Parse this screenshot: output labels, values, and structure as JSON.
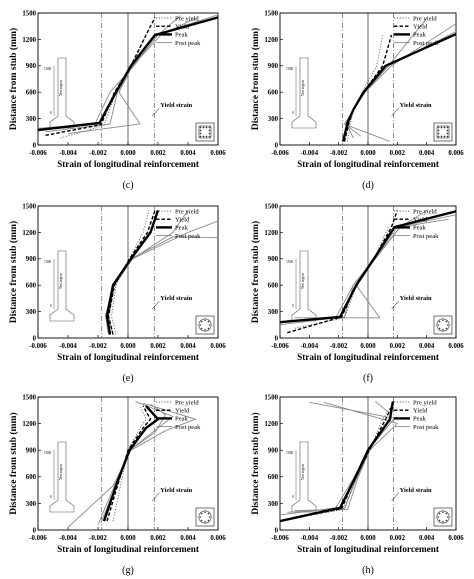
{
  "chart_data": [
    {
      "panel_label": "(c)",
      "type": "line",
      "xlabel": "Strain of longitudinal reinforcement",
      "ylabel": "Distance from stub (mm)",
      "xlim": [
        -0.006,
        0.006
      ],
      "ylim": [
        0,
        1500
      ],
      "xticks": [
        "-0.006",
        "-0.004",
        "-0.002",
        "0.000",
        "0.002",
        "0.004",
        "0.006"
      ],
      "yticks": [
        "0",
        "300",
        "600",
        "900",
        "1200",
        "1500"
      ],
      "yield_strain": 0.00175,
      "yield_label": "Yield strain",
      "inset_label": "Test region",
      "inset_dim": "1500",
      "inset_zero": "0",
      "section": "square",
      "legend": {
        "entries": [
          {
            "name": "Pre yield",
            "style": "dotted"
          },
          {
            "name": "Yield",
            "style": "dashed"
          },
          {
            "name": "Peak",
            "style": "solid-thick"
          },
          {
            "name": "Post peak",
            "style": "solid-gray"
          }
        ]
      },
      "series": [
        {
          "name": "Pre yield",
          "style": "dotted",
          "x": [
            -0.0045,
            -0.0016,
            -0.0008,
            0.0003,
            0.0012
          ],
          "y": [
            80,
            220,
            600,
            900,
            1250
          ]
        },
        {
          "name": "Yield",
          "style": "dashed",
          "x": [
            -0.0055,
            -0.0018,
            -0.0009,
            0.0002,
            0.0012,
            0.0018
          ],
          "y": [
            110,
            230,
            600,
            900,
            1250,
            1450
          ]
        },
        {
          "name": "Peak",
          "style": "solid-thick",
          "x": [
            -0.006,
            -0.0019,
            -0.0008,
            0.0002,
            0.0018,
            0.006
          ],
          "y": [
            170,
            250,
            600,
            900,
            1250,
            1450
          ]
        },
        {
          "name": "Post peak",
          "style": "solid-gray",
          "x": [
            -0.006,
            -0.0022,
            -0.0012,
            0.0004,
            0.002,
            0.006
          ],
          "y": [
            190,
            240,
            600,
            900,
            1260,
            1480
          ]
        },
        {
          "name": "Post peak",
          "style": "solid-gray",
          "x": [
            -0.0055,
            -0.0012,
            -0.0007,
            0.0003,
            0.002,
            0.0035
          ],
          "y": [
            150,
            240,
            600,
            900,
            1250,
            1470
          ]
        },
        {
          "name": "Post peak",
          "style": "solid-gray",
          "x": [
            -0.004,
            0.0008,
            -0.0006,
            0.0003,
            0.0022,
            0.0045
          ],
          "y": [
            130,
            240,
            600,
            900,
            1250,
            1440
          ]
        }
      ]
    },
    {
      "panel_label": "(d)",
      "type": "line",
      "xlabel": "Strain of longitudinal reinforcement",
      "ylabel": "Distance from stub (mm)",
      "xlim": [
        -0.006,
        0.006
      ],
      "ylim": [
        0,
        1500
      ],
      "xticks": [
        "-0.006",
        "-0.004",
        "-0.002",
        "0.000",
        "0.002",
        "0.004",
        "0.006"
      ],
      "yticks": [
        "0",
        "300",
        "600",
        "900",
        "1200",
        "1500"
      ],
      "yield_strain": 0.00175,
      "yield_label": "Yield strain",
      "inset_label": "Test region",
      "inset_dim": "1500",
      "inset_zero": "0",
      "section": "square",
      "legend": {
        "entries": [
          {
            "name": "Pre yield",
            "style": "dotted"
          },
          {
            "name": "Yield",
            "style": "dashed"
          },
          {
            "name": "Peak",
            "style": "solid-thick"
          },
          {
            "name": "Post peak",
            "style": "solid-gray"
          }
        ]
      },
      "series": [
        {
          "name": "Pre yield",
          "style": "dotted",
          "x": [
            -0.0014,
            -0.0012,
            -0.001,
            -0.0004,
            0.0006,
            0.001
          ],
          "y": [
            40,
            250,
            400,
            600,
            900,
            1250
          ]
        },
        {
          "name": "Yield",
          "style": "dashed",
          "x": [
            -0.0016,
            -0.0013,
            -0.001,
            -0.0003,
            0.001,
            0.0016
          ],
          "y": [
            40,
            250,
            400,
            600,
            900,
            1250
          ]
        },
        {
          "name": "Peak",
          "style": "solid-thick",
          "x": [
            -0.0017,
            -0.0014,
            -0.001,
            -0.0003,
            0.0012,
            0.006
          ],
          "y": [
            40,
            250,
            400,
            600,
            900,
            1260
          ]
        },
        {
          "name": "Post peak",
          "style": "solid-gray",
          "x": [
            -0.001,
            -0.0015,
            -0.001,
            -0.0003,
            0.0014,
            0.006
          ],
          "y": [
            80,
            250,
            400,
            600,
            900,
            1290
          ]
        },
        {
          "name": "Post peak",
          "style": "solid-gray",
          "x": [
            -0.0005,
            -0.0016,
            -0.001,
            -0.0002,
            0.0014,
            0.004
          ],
          "y": [
            100,
            240,
            400,
            600,
            900,
            1440
          ]
        },
        {
          "name": "Post peak",
          "style": "solid-gray",
          "x": [
            0.0015,
            -0.0015,
            -0.001,
            -0.0002,
            0.0016,
            0.006
          ],
          "y": [
            40,
            230,
            400,
            600,
            900,
            1380
          ]
        }
      ]
    },
    {
      "panel_label": "(e)",
      "type": "line",
      "xlabel": "Strain of longitudinal reinforcement",
      "ylabel": "Distance from stub (mm)",
      "xlim": [
        -0.006,
        0.006
      ],
      "ylim": [
        0,
        1500
      ],
      "xticks": [
        "-0.006",
        "-0.004",
        "-0.002",
        "0.000",
        "0.002",
        "0.004",
        "0.006"
      ],
      "yticks": [
        "0",
        "300",
        "600",
        "900",
        "1200",
        "1500"
      ],
      "yield_strain": 0.00175,
      "yield_label": "Yield strain",
      "inset_label": "Test region",
      "inset_dim": "1500",
      "inset_zero": "0",
      "section": "circle",
      "legend": {
        "entries": [
          {
            "name": "Pre yield",
            "style": "dotted"
          },
          {
            "name": "Yield",
            "style": "dashed"
          },
          {
            "name": "Peak",
            "style": "solid-thick"
          },
          {
            "name": "Post peak",
            "style": "solid-gray"
          }
        ]
      },
      "series": [
        {
          "name": "Pre yield",
          "style": "dotted",
          "x": [
            -0.0008,
            -0.0011,
            -0.0008,
            0.0001,
            0.001,
            0.0014
          ],
          "y": [
            40,
            250,
            600,
            900,
            1200,
            1450
          ]
        },
        {
          "name": "Yield",
          "style": "dashed",
          "x": [
            -0.001,
            -0.0013,
            -0.0009,
            0.0001,
            0.0013,
            0.0018
          ],
          "y": [
            40,
            250,
            600,
            900,
            1200,
            1450
          ]
        },
        {
          "name": "Peak",
          "style": "solid-thick",
          "x": [
            -0.0012,
            -0.0014,
            -0.001,
            0.0002,
            0.0015,
            0.002
          ],
          "y": [
            40,
            250,
            600,
            900,
            1200,
            1450
          ]
        },
        {
          "name": "Post peak",
          "style": "solid-gray",
          "x": [
            -0.0013,
            -0.0015,
            -0.001,
            0.0003,
            0.003,
            0.004
          ],
          "y": [
            40,
            250,
            600,
            900,
            1200,
            1450
          ]
        },
        {
          "name": "Post peak",
          "style": "solid-gray",
          "x": [
            -0.001,
            -0.0013,
            -0.0009,
            0.0003,
            0.004,
            0.006
          ],
          "y": [
            40,
            250,
            600,
            900,
            1200,
            1330
          ]
        },
        {
          "name": "Post peak",
          "style": "solid-gray",
          "x": [
            -0.0012,
            -0.0015,
            -0.001,
            0.0002,
            0.003,
            0.006
          ],
          "y": [
            40,
            250,
            600,
            900,
            1150,
            1140
          ]
        }
      ]
    },
    {
      "panel_label": "(f)",
      "type": "line",
      "xlabel": "Strain of longitudinal reinforcement",
      "ylabel": "Distance from stub (mm)",
      "xlim": [
        -0.006,
        0.006
      ],
      "ylim": [
        0,
        1500
      ],
      "xticks": [
        "-0.006",
        "-0.004",
        "-0.002",
        "0.000",
        "0.002",
        "0.004",
        "0.006"
      ],
      "yticks": [
        "0",
        "300",
        "600",
        "900",
        "1200",
        "1500"
      ],
      "yield_strain": 0.00175,
      "yield_label": "Yield strain",
      "inset_label": "Test region",
      "inset_dim": "1500",
      "inset_zero": "0",
      "section": "circle",
      "legend": {
        "entries": [
          {
            "name": "Pre yield",
            "style": "dotted"
          },
          {
            "name": "Yield",
            "style": "dashed"
          },
          {
            "name": "Peak",
            "style": "solid-thick"
          },
          {
            "name": "Post peak",
            "style": "solid-gray"
          }
        ]
      },
      "series": [
        {
          "name": "Pre yield",
          "style": "dotted",
          "x": [
            -0.005,
            -0.0016,
            -0.0008,
            0.0004,
            0.0014
          ],
          "y": [
            110,
            230,
            600,
            900,
            1260
          ]
        },
        {
          "name": "Yield",
          "style": "dashed",
          "x": [
            -0.0055,
            -0.0018,
            -0.0008,
            0.0004,
            0.0016,
            0.002
          ],
          "y": [
            60,
            240,
            600,
            900,
            1260,
            1450
          ]
        },
        {
          "name": "Peak",
          "style": "solid-thick",
          "x": [
            -0.006,
            -0.0019,
            -0.0008,
            0.0004,
            0.0018,
            0.006
          ],
          "y": [
            180,
            240,
            600,
            900,
            1260,
            1440
          ]
        },
        {
          "name": "Post peak",
          "style": "solid-gray",
          "x": [
            -0.006,
            -0.0022,
            -0.001,
            0.0004,
            0.002,
            0.006
          ],
          "y": [
            150,
            230,
            600,
            900,
            1260,
            1400
          ]
        },
        {
          "name": "Post peak",
          "style": "solid-gray",
          "x": [
            -0.0055,
            -0.0016,
            -0.001,
            0.0005,
            0.0022,
            0.004
          ],
          "y": [
            200,
            240,
            600,
            900,
            1260,
            1450
          ]
        },
        {
          "name": "Post peak",
          "style": "solid-gray",
          "x": [
            -0.005,
            0.0008,
            -0.0008,
            0.0004,
            0.0022,
            0.0055
          ],
          "y": [
            230,
            230,
            600,
            900,
            1260,
            1350
          ]
        }
      ]
    },
    {
      "panel_label": "(g)",
      "type": "line",
      "xlabel": "Strain of longitudinal reinforcement",
      "ylabel": "Distance from stub (mm)",
      "xlim": [
        -0.006,
        0.006
      ],
      "ylim": [
        0,
        1500
      ],
      "xticks": [
        "-0.006",
        "-0.004",
        "-0.002",
        "0.000",
        "0.002",
        "0.004",
        "0.006"
      ],
      "yticks": [
        "0",
        "300",
        "600",
        "900",
        "1200",
        "1500"
      ],
      "yield_strain": 0.00175,
      "yield_label": "Yield strain",
      "inset_label": "Test region",
      "inset_dim": "1500",
      "inset_zero": "0",
      "section": "circle",
      "legend": {
        "entries": [
          {
            "name": "Pre yield",
            "style": "dotted"
          },
          {
            "name": "Yield",
            "style": "dashed"
          },
          {
            "name": "Peak",
            "style": "solid-thick"
          },
          {
            "name": "Post peak",
            "style": "solid-gray"
          }
        ]
      },
      "series": [
        {
          "name": "Pre yield",
          "style": "dotted",
          "x": [
            -0.001,
            -0.0005,
            0.0,
            0.0008,
            0.0012,
            0.0008
          ],
          "y": [
            100,
            500,
            900,
            1150,
            1250,
            1400
          ]
        },
        {
          "name": "Yield",
          "style": "dashed",
          "x": [
            -0.0014,
            -0.0007,
            0.0,
            0.001,
            0.0015,
            0.001
          ],
          "y": [
            100,
            500,
            900,
            1150,
            1250,
            1400
          ]
        },
        {
          "name": "Peak",
          "style": "solid-thick",
          "x": [
            -0.0016,
            -0.0008,
            0.0001,
            0.0012,
            0.002,
            0.0012
          ],
          "y": [
            100,
            500,
            900,
            1150,
            1250,
            1400
          ]
        },
        {
          "name": "Post peak",
          "style": "solid-gray",
          "x": [
            -0.004,
            -0.001,
            0.0002,
            0.0025,
            0.0045,
            0.001
          ],
          "y": [
            30,
            500,
            900,
            1120,
            1250,
            1430
          ]
        },
        {
          "name": "Post peak",
          "style": "solid-gray",
          "x": [
            -0.002,
            -0.0009,
            0.0001,
            0.002,
            0.003,
            0.0005
          ],
          "y": [
            60,
            500,
            900,
            1150,
            1280,
            1450
          ]
        },
        {
          "name": "Post peak",
          "style": "solid-gray",
          "x": [
            -0.0018,
            -0.0008,
            0.0001,
            0.0018,
            0.0025,
            0.0015
          ],
          "y": [
            80,
            500,
            900,
            1100,
            1300,
            1420
          ]
        }
      ]
    },
    {
      "panel_label": "(h)",
      "type": "line",
      "xlabel": "Strain of longitudinal reinforcement",
      "ylabel": "Distance from stub (mm)",
      "xlim": [
        -0.006,
        0.006
      ],
      "ylim": [
        0,
        1500
      ],
      "xticks": [
        "-0.006",
        "-0.004",
        "-0.002",
        "0.000",
        "0.002",
        "0.004",
        "0.006"
      ],
      "yticks": [
        "0",
        "300",
        "600",
        "900",
        "1200",
        "1500"
      ],
      "yield_strain": 0.00175,
      "yield_label": "Yield strain",
      "inset_label": "Test region",
      "inset_dim": "1500",
      "inset_zero": "0",
      "section": "circle",
      "legend": {
        "entries": [
          {
            "name": "Pre yield",
            "style": "dotted"
          },
          {
            "name": "Yield",
            "style": "dashed"
          },
          {
            "name": "Peak",
            "style": "solid-thick"
          },
          {
            "name": "Post peak",
            "style": "solid-gray"
          }
        ]
      },
      "series": [
        {
          "name": "Pre yield",
          "style": "dotted",
          "x": [
            -0.005,
            -0.0017,
            -0.0008,
            0.0001,
            0.001,
            0.0016
          ],
          "y": [
            140,
            230,
            580,
            900,
            1250,
            1400
          ]
        },
        {
          "name": "Yield",
          "style": "dashed",
          "x": [
            -0.0055,
            -0.0018,
            -0.0009,
            0.0001,
            0.0012,
            0.0017
          ],
          "y": [
            120,
            240,
            580,
            900,
            1250,
            1420
          ]
        },
        {
          "name": "Peak",
          "style": "solid-thick",
          "x": [
            -0.006,
            -0.0019,
            -0.0009,
            0.0,
            0.0015,
            0.0017
          ],
          "y": [
            100,
            250,
            580,
            900,
            1250,
            1450
          ]
        },
        {
          "name": "Post peak",
          "style": "solid-gray",
          "x": [
            -0.006,
            -0.0022,
            -0.001,
            0.0,
            0.0018,
            -0.004
          ],
          "y": [
            170,
            250,
            580,
            900,
            1260,
            1440
          ]
        },
        {
          "name": "Post peak",
          "style": "solid-gray",
          "x": [
            -0.0055,
            -0.0016,
            -0.0008,
            0.0001,
            0.002,
            -0.003
          ],
          "y": [
            200,
            240,
            580,
            900,
            1200,
            1440
          ]
        },
        {
          "name": "Post peak",
          "style": "solid-gray",
          "x": [
            -0.005,
            -0.0014,
            -0.0007,
            0.0001,
            0.0016,
            0.0005
          ],
          "y": [
            220,
            230,
            580,
            900,
            1300,
            1450
          ]
        }
      ]
    }
  ]
}
